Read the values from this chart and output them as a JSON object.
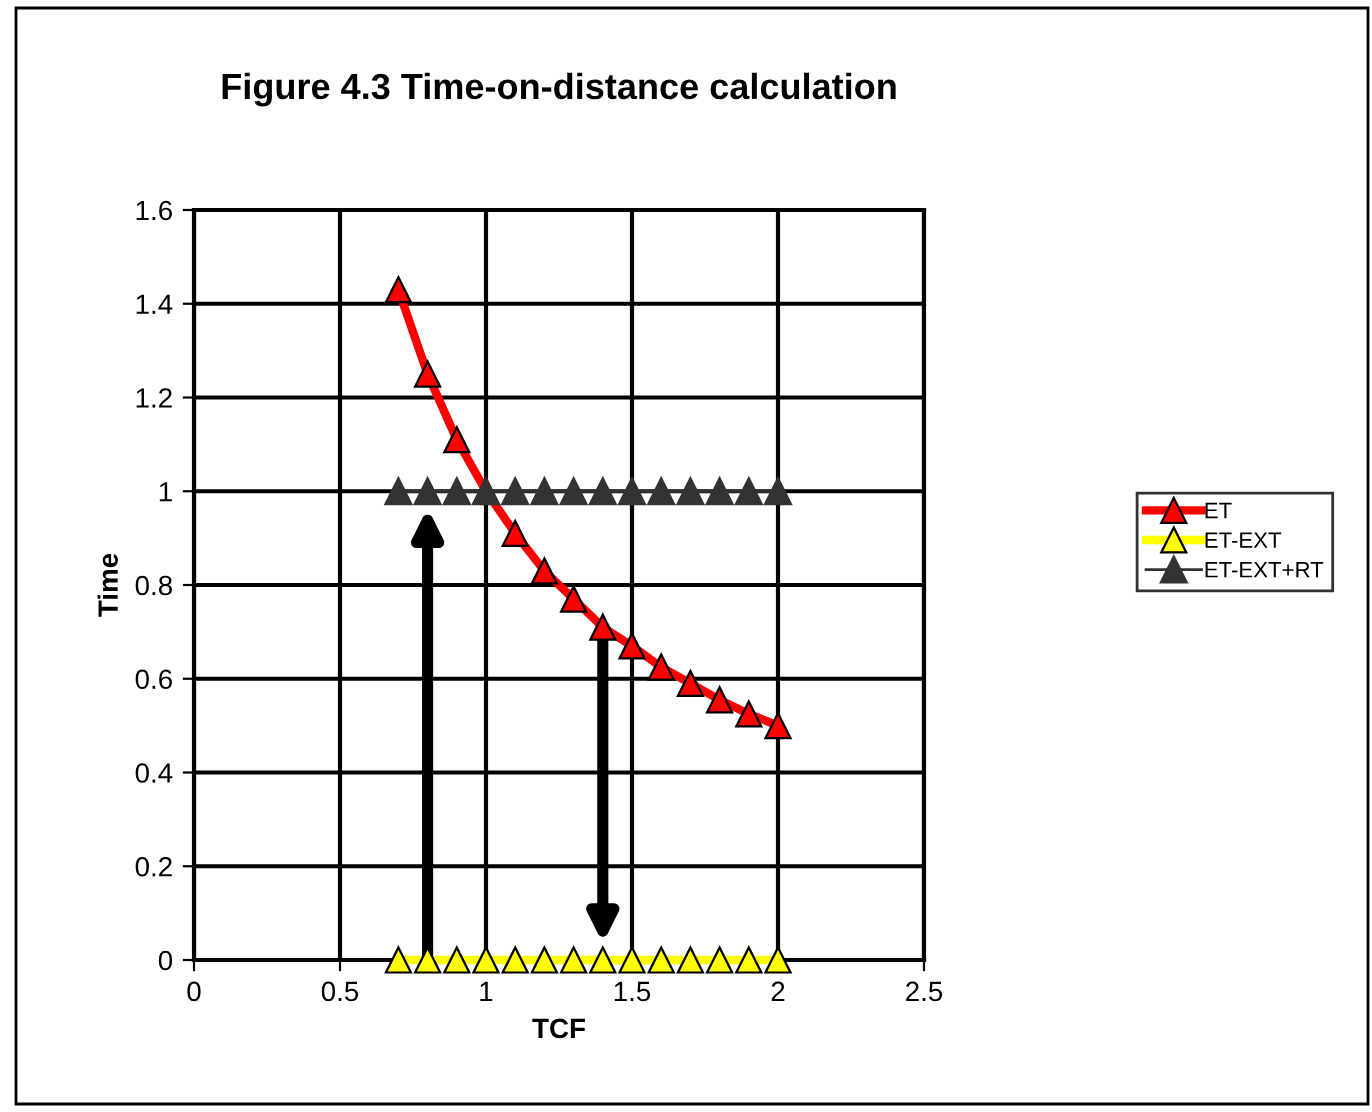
{
  "chart_data": {
    "type": "line",
    "title": "Figure 4.3 Time-on-distance calculation",
    "xlabel": "TCF",
    "ylabel": "Time",
    "x": [
      0.7,
      0.8,
      0.9,
      1.0,
      1.1,
      1.2,
      1.3,
      1.4,
      1.5,
      1.6,
      1.7,
      1.8,
      1.9,
      2.0
    ],
    "series": [
      {
        "name": "ET",
        "color": "#ff0000",
        "values": [
          1.43,
          1.25,
          1.11,
          1.0,
          0.91,
          0.83,
          0.77,
          0.71,
          0.67,
          0.625,
          0.59,
          0.555,
          0.525,
          0.5
        ]
      },
      {
        "name": "ET-EXT",
        "color": "#ffff00",
        "values": [
          0,
          0,
          0,
          0,
          0,
          0,
          0,
          0,
          0,
          0,
          0,
          0,
          0,
          0
        ]
      },
      {
        "name": "ET-EXT+RT",
        "color": "#333333",
        "values": [
          1,
          1,
          1,
          1,
          1,
          1,
          1,
          1,
          1,
          1,
          1,
          1,
          1,
          1
        ]
      }
    ],
    "xlim": [
      0,
      2.5
    ],
    "xticks": [
      0,
      0.5,
      1,
      1.5,
      2,
      2.5
    ],
    "ylim": [
      0,
      1.6
    ],
    "yticks": [
      0,
      0.2,
      0.4,
      0.6,
      0.8,
      1,
      1.2,
      1.4,
      1.6
    ],
    "grid": true,
    "legend": "right",
    "marker": "triangle",
    "line_style": "solid"
  }
}
